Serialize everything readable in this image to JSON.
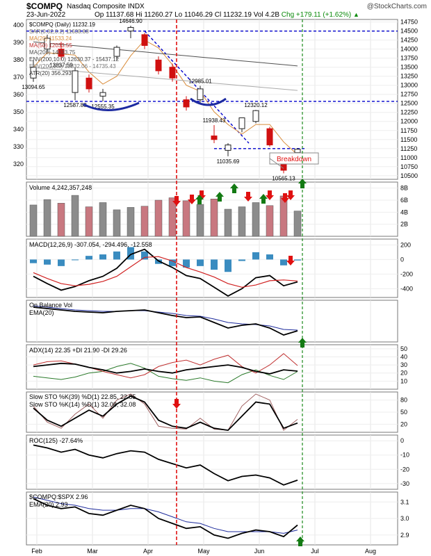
{
  "header": {
    "title": "$COMPQ",
    "name": "Nasdaq Composite INDX",
    "brand": "@StockCharts.com",
    "date": "23-Jun-2022",
    "open": "Op 11137.68",
    "high": "Hi 11260.27",
    "low": "Lo 11046.29",
    "close": "Cl 11232.19",
    "vol": "Vol 4.2B",
    "chg": "Chg +179.11 (+1.62%)",
    "up_symbol": "▲"
  },
  "colors": {
    "up": "#222222",
    "down": "#d01010",
    "volume_up": "#8c8c8c",
    "volume_down": "#c87880",
    "ma20": "#d98c3a",
    "ma50": "#c03030",
    "ma200": "#505050",
    "env": "#aaaaaa",
    "annotation_blue": "#0000cc",
    "signal_green": "#137a13",
    "signal_red": "#e01010"
  },
  "chart_data": {
    "type": "financial-multipanel",
    "x_ticks": [
      "Feb",
      "Mar",
      "Apr",
      "May",
      "Jun",
      "Jul",
      "Aug"
    ],
    "price": {
      "legend": [
        "$COMPQ (Daily) 11232.19",
        "SAR(0.02,0.2) 11638.88",
        "MA(20) 11533.24",
        "MA(50) 12033.55",
        "MA(200) 14033.75",
        "ENV(200,10.0) 12630.37 - 15437.12",
        "ENV(200,5.0) 13332.06 - 14735.43",
        "ATR(20) 356.293"
      ],
      "left_ticks": [
        "400",
        "390",
        "380",
        "370",
        "360",
        "350",
        "340",
        "330",
        "320"
      ],
      "right_ticks": [
        "14750",
        "14500",
        "14250",
        "14000",
        "13750",
        "13500",
        "13250",
        "13000",
        "12750",
        "12500",
        "12250",
        "12000",
        "11750",
        "11500",
        "11250",
        "11000",
        "10750",
        "10500"
      ],
      "ylim": [
        10400,
        14820
      ],
      "annotations": [
        "14646.90",
        "13837.59",
        "13094.65",
        "12587.88",
        "12555.35",
        "12985.01",
        "11938.43",
        "12320.12",
        "11035.69",
        "10565.13",
        "Breakdown"
      ],
      "candles": [
        {
          "t": "2022-01-24",
          "o": 13200,
          "h": 13700,
          "l": 13094.65,
          "c": 13500
        },
        {
          "t": "2022-02-01",
          "o": 14000,
          "h": 14400,
          "l": 13900,
          "c": 14300
        },
        {
          "t": "2022-02-15",
          "o": 14000,
          "h": 14200,
          "l": 13700,
          "c": 13800
        },
        {
          "t": "2022-02-24",
          "o": 12800,
          "h": 13500,
          "l": 12587.88,
          "c": 13400
        },
        {
          "t": "2022-03-07",
          "o": 13200,
          "h": 13300,
          "l": 12800,
          "c": 12900
        },
        {
          "t": "2022-03-14",
          "o": 12700,
          "h": 12900,
          "l": 12555.35,
          "c": 12800
        },
        {
          "t": "2022-03-21",
          "o": 13800,
          "h": 14100,
          "l": 13700,
          "c": 14050
        },
        {
          "t": "2022-03-29",
          "o": 14500,
          "h": 14646.9,
          "l": 14300,
          "c": 14600
        },
        {
          "t": "2022-04-05",
          "o": 14400,
          "h": 14450,
          "l": 14000,
          "c": 14100
        },
        {
          "t": "2022-04-12",
          "o": 13700,
          "h": 13800,
          "l": 13300,
          "c": 13400
        },
        {
          "t": "2022-04-20",
          "o": 13500,
          "h": 13600,
          "l": 13100,
          "c": 13200
        },
        {
          "t": "2022-04-26",
          "o": 12600,
          "h": 12700,
          "l": 12300,
          "c": 12400
        },
        {
          "t": "2022-05-04",
          "o": 12600,
          "h": 12985.01,
          "l": 12500,
          "c": 12900
        },
        {
          "t": "2022-05-11",
          "o": 11600,
          "h": 11900,
          "l": 11400,
          "c": 11500
        },
        {
          "t": "2022-05-20",
          "o": 11200,
          "h": 11400,
          "l": 11035.69,
          "c": 11350
        },
        {
          "t": "2022-05-27",
          "o": 11800,
          "h": 12100,
          "l": 11700,
          "c": 12100
        },
        {
          "t": "2022-06-02",
          "o": 12000,
          "h": 12320.12,
          "l": 11950,
          "c": 12300
        },
        {
          "t": "2022-06-10",
          "o": 11800,
          "h": 11850,
          "l": 11300,
          "c": 11350
        },
        {
          "t": "2022-06-16",
          "o": 10900,
          "h": 11000,
          "l": 10565.13,
          "c": 10650
        },
        {
          "t": "2022-06-23",
          "o": 11137.68,
          "h": 11260.27,
          "l": 11046.29,
          "c": 11232.19
        }
      ]
    },
    "volume": {
      "label": "Volume 4,242,357,248",
      "ticks": [
        "8B",
        "6B",
        "4B",
        "2B"
      ],
      "ylim": [
        0,
        9
      ],
      "values": [
        5.2,
        6.1,
        5.5,
        6.8,
        4.9,
        5.6,
        4.4,
        4.8,
        5.0,
        6.0,
        6.4,
        5.9,
        5.3,
        6.2,
        4.5,
        4.9,
        5.6,
        5.1,
        6.7,
        4.2
      ]
    },
    "macd": {
      "label": "MACD(12,26,9) -307.054, -294.496, -12.558",
      "ticks": [
        "200",
        "0",
        "-200",
        "-400"
      ],
      "ylim": [
        -520,
        280
      ],
      "macd": [
        -230,
        -330,
        -420,
        -370,
        -290,
        -230,
        -120,
        70,
        140,
        -20,
        -110,
        -220,
        -260,
        -380,
        -500,
        -400,
        -250,
        -220,
        -360,
        -307
      ],
      "signal": [
        -180,
        -260,
        -330,
        -360,
        -340,
        -300,
        -230,
        -100,
        30,
        40,
        -20,
        -110,
        -170,
        -240,
        -330,
        -380,
        -350,
        -290,
        -280,
        -294
      ],
      "histogram": [
        -50,
        -70,
        -90,
        -10,
        50,
        70,
        110,
        170,
        110,
        -60,
        -90,
        -110,
        -90,
        -140,
        -170,
        -20,
        100,
        70,
        -80,
        -13
      ]
    },
    "obv": {
      "label": "On Balance Vol",
      "ema_label": "EMA(20)",
      "obv": [
        70,
        68,
        66,
        64,
        63,
        62,
        64,
        65,
        66,
        62,
        58,
        55,
        56,
        48,
        40,
        44,
        46,
        40,
        30,
        36
      ],
      "ema": [
        72,
        70,
        68,
        66,
        65,
        64,
        64,
        65,
        65,
        63,
        61,
        58,
        57,
        53,
        48,
        46,
        45,
        43,
        38,
        37
      ]
    },
    "adx": {
      "label": "ADX(14) 22.35 +DI 21.90 -DI 29.26",
      "ticks": [
        "50",
        "40",
        "30",
        "20",
        "10"
      ],
      "ylim": [
        0,
        55
      ],
      "adx": [
        28,
        30,
        32,
        31,
        27,
        24,
        20,
        22,
        25,
        22,
        20,
        24,
        26,
        28,
        30,
        27,
        22,
        19,
        24,
        22.35
      ],
      "plus_di": [
        16,
        14,
        12,
        15,
        20,
        22,
        28,
        32,
        26,
        16,
        13,
        11,
        14,
        10,
        8,
        18,
        24,
        17,
        12,
        21.9
      ],
      "minus_di": [
        30,
        34,
        35,
        31,
        27,
        22,
        18,
        14,
        18,
        28,
        33,
        36,
        30,
        37,
        42,
        28,
        20,
        30,
        44,
        29.26
      ]
    },
    "stoch": {
      "label_fast": "Slow STO %K(39) %D(1) 22.85, 22.85",
      "label_slow": "Slow STO %K(14) %D(1) 32.08, 32.08",
      "ticks": [
        "80",
        "50",
        "20"
      ],
      "ylim": [
        0,
        100
      ],
      "k39": [
        60,
        30,
        15,
        35,
        55,
        40,
        70,
        90,
        75,
        30,
        15,
        10,
        25,
        10,
        5,
        40,
        75,
        70,
        10,
        22.85
      ],
      "k14": [
        65,
        25,
        10,
        45,
        70,
        35,
        80,
        95,
        70,
        15,
        10,
        8,
        35,
        8,
        5,
        65,
        95,
        80,
        5,
        32.08
      ]
    },
    "roc": {
      "label": "ROC(125) -27.64%",
      "ticks": [
        "0",
        "-10",
        "-20",
        "-30"
      ],
      "ylim": [
        -34,
        4
      ],
      "values": [
        -3,
        -5,
        -8,
        -6,
        -10,
        -12,
        -9,
        -7,
        -8,
        -13,
        -16,
        -19,
        -17,
        -23,
        -28,
        -25,
        -24,
        -26,
        -31,
        -27.64
      ]
    },
    "ratio": {
      "label": "$COMPQ:$SPX 2.96",
      "ema_label": "EMA(20) 2.93",
      "ticks": [
        "3.1",
        "3.0",
        "2.9"
      ],
      "ylim": [
        2.84,
        3.16
      ],
      "values": [
        3.12,
        3.08,
        3.06,
        3.07,
        3.03,
        3.02,
        3.05,
        3.08,
        3.06,
        3.0,
        2.97,
        2.94,
        2.95,
        2.9,
        2.88,
        2.91,
        2.93,
        2.92,
        2.89,
        2.96
      ],
      "ema": [
        3.13,
        3.11,
        3.09,
        3.08,
        3.06,
        3.05,
        3.05,
        3.06,
        3.06,
        3.04,
        3.01,
        2.98,
        2.97,
        2.94,
        2.92,
        2.92,
        2.92,
        2.92,
        2.91,
        2.93
      ]
    }
  }
}
